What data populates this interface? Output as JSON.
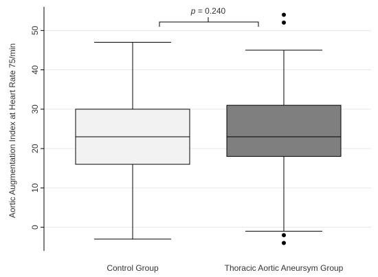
{
  "chart_data": {
    "type": "box",
    "ylabel": "Aortic Augmentation Index at Heart Rate 75/min",
    "xlabel": "",
    "title": "",
    "ylim": [
      -6,
      56
    ],
    "yticks": [
      0,
      10,
      20,
      30,
      40,
      50
    ],
    "grid": true,
    "categories": [
      "Control Group",
      "Thoracic Aortic Aneursym Group"
    ],
    "boxes": [
      {
        "category": "Control Group",
        "whisker_low": -3,
        "q1": 16,
        "median": 23,
        "q3": 30,
        "whisker_high": 47,
        "outliers": [],
        "fill": "#f2f2f2"
      },
      {
        "category": "Thoracic Aortic Aneursym Group",
        "whisker_low": -1,
        "q1": 18,
        "median": 23,
        "q3": 31,
        "whisker_high": 45,
        "outliers": [
          -2,
          -4,
          52,
          54
        ],
        "fill": "#7f7f7f"
      }
    ],
    "annotation": {
      "p_label": "p",
      "text": " = 0.240"
    }
  }
}
